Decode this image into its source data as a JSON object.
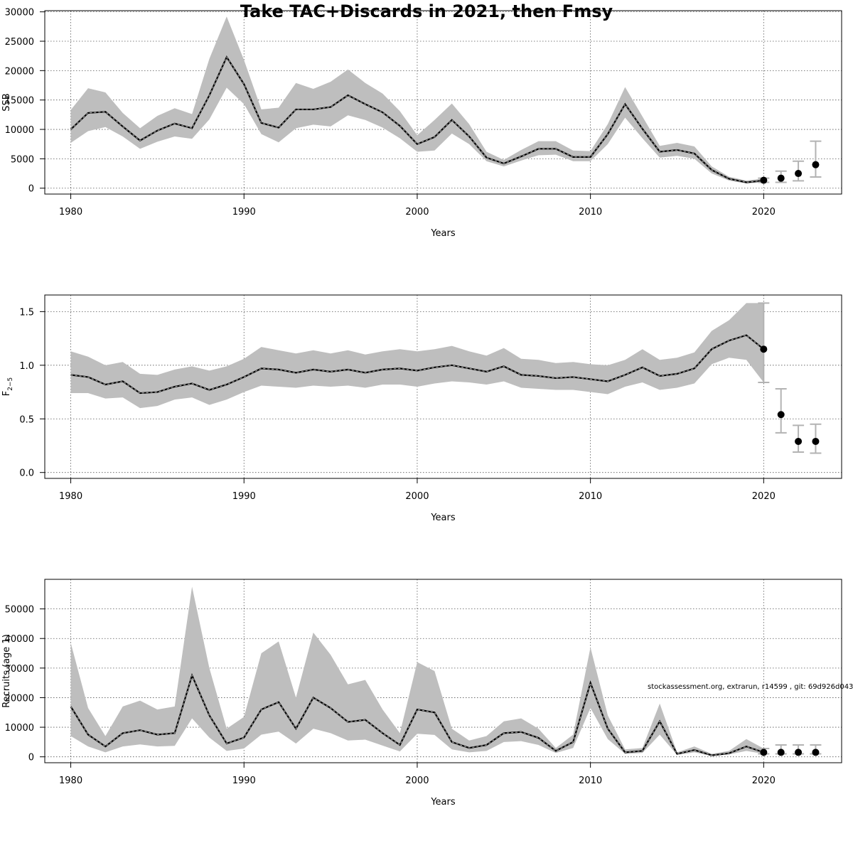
{
  "title": "Take TAC+Discards in 2021, then Fmsy",
  "footnote": "stockassessment.org, extrarun, r14599 , git: 69d926d0437c",
  "colors": {
    "band": "#bebebe",
    "line": "#000000",
    "errorbar": "#b3b3b3"
  },
  "chart_data": [
    {
      "type": "line",
      "name": "ssb-panel",
      "xlabel": "Years",
      "ylabel": "SSB",
      "xlim": [
        1978.5,
        2024.5
      ],
      "ylim": [
        -1000,
        30200
      ],
      "xticks": [
        1980,
        1990,
        2000,
        2010,
        2020
      ],
      "yticks": [
        0,
        5000,
        10000,
        15000,
        20000,
        25000,
        30000
      ],
      "grid": true,
      "years": [
        1980,
        1981,
        1982,
        1983,
        1984,
        1985,
        1986,
        1987,
        1988,
        1989,
        1990,
        1991,
        1992,
        1993,
        1994,
        1995,
        1996,
        1997,
        1998,
        1999,
        2000,
        2001,
        2002,
        2003,
        2004,
        2005,
        2006,
        2007,
        2008,
        2009,
        2010,
        2011,
        2012,
        2013,
        2014,
        2015,
        2016,
        2017,
        2018,
        2019,
        2020
      ],
      "estimate": [
        10000,
        12800,
        13000,
        10500,
        8100,
        9800,
        11000,
        10200,
        15800,
        22300,
        17700,
        11100,
        10300,
        13400,
        13400,
        13800,
        15800,
        14300,
        12900,
        10600,
        7500,
        8700,
        11600,
        8800,
        5200,
        4200,
        5400,
        6700,
        6700,
        5300,
        5300,
        9200,
        14300,
        10100,
        6200,
        6500,
        5900,
        3100,
        1600,
        1000,
        1300
      ],
      "upper": [
        13300,
        17000,
        16300,
        12800,
        10200,
        12300,
        13600,
        12600,
        22000,
        29200,
        21800,
        13400,
        13700,
        17900,
        16900,
        18100,
        20200,
        17900,
        16100,
        13100,
        9000,
        11600,
        14400,
        10900,
        6200,
        4800,
        6500,
        8000,
        8000,
        6400,
        6300,
        10900,
        17200,
        12200,
        7200,
        7700,
        7100,
        3700,
        1950,
        1300,
        1650
      ],
      "lower": [
        7700,
        9700,
        10400,
        8800,
        6700,
        7900,
        8800,
        8400,
        11700,
        17100,
        14300,
        9200,
        7800,
        10200,
        10800,
        10500,
        12400,
        11600,
        10300,
        8500,
        6200,
        6400,
        9300,
        7500,
        4600,
        3700,
        4700,
        5600,
        5700,
        4600,
        4600,
        7500,
        12000,
        8500,
        5200,
        5500,
        5000,
        2500,
        1300,
        800,
        1000
      ],
      "forecast": {
        "years": [
          2020,
          2021,
          2022,
          2023
        ],
        "median": [
          1350,
          1700,
          2500,
          4000
        ],
        "low": [
          1000,
          1000,
          1250,
          1900
        ],
        "high": [
          1700,
          2900,
          4600,
          8000
        ]
      }
    },
    {
      "type": "line",
      "name": "f-panel",
      "xlabel": "Years",
      "ylabel": "F",
      "ylabel_sub": "2−5",
      "xlim": [
        1978.5,
        2024.5
      ],
      "ylim": [
        -0.055,
        1.655
      ],
      "xticks": [
        1980,
        1990,
        2000,
        2010,
        2020
      ],
      "yticks": [
        0.0,
        0.5,
        1.0,
        1.5
      ],
      "ytick_labels": [
        "0.0",
        "0.5",
        "1.0",
        "1.5"
      ],
      "grid": true,
      "years": [
        1980,
        1981,
        1982,
        1983,
        1984,
        1985,
        1986,
        1987,
        1988,
        1989,
        1990,
        1991,
        1992,
        1993,
        1994,
        1995,
        1996,
        1997,
        1998,
        1999,
        2000,
        2001,
        2002,
        2003,
        2004,
        2005,
        2006,
        2007,
        2008,
        2009,
        2010,
        2011,
        2012,
        2013,
        2014,
        2015,
        2016,
        2017,
        2018,
        2019,
        2020
      ],
      "estimate": [
        0.91,
        0.89,
        0.82,
        0.85,
        0.74,
        0.75,
        0.8,
        0.83,
        0.77,
        0.82,
        0.89,
        0.97,
        0.96,
        0.93,
        0.96,
        0.94,
        0.96,
        0.93,
        0.96,
        0.97,
        0.95,
        0.98,
        1.0,
        0.97,
        0.94,
        0.99,
        0.91,
        0.9,
        0.88,
        0.89,
        0.87,
        0.85,
        0.91,
        0.98,
        0.9,
        0.92,
        0.97,
        1.15,
        1.23,
        1.28,
        1.15
      ],
      "upper": [
        1.13,
        1.08,
        1.0,
        1.03,
        0.92,
        0.91,
        0.96,
        0.99,
        0.95,
        0.99,
        1.06,
        1.17,
        1.14,
        1.11,
        1.14,
        1.11,
        1.14,
        1.1,
        1.13,
        1.15,
        1.13,
        1.15,
        1.18,
        1.13,
        1.09,
        1.16,
        1.06,
        1.05,
        1.02,
        1.03,
        1.01,
        1.0,
        1.05,
        1.15,
        1.05,
        1.07,
        1.12,
        1.32,
        1.42,
        1.58,
        1.58
      ],
      "lower": [
        0.74,
        0.74,
        0.69,
        0.7,
        0.6,
        0.62,
        0.68,
        0.7,
        0.63,
        0.68,
        0.75,
        0.81,
        0.8,
        0.79,
        0.81,
        0.8,
        0.81,
        0.79,
        0.82,
        0.82,
        0.8,
        0.83,
        0.85,
        0.84,
        0.82,
        0.85,
        0.79,
        0.78,
        0.77,
        0.77,
        0.75,
        0.73,
        0.8,
        0.84,
        0.77,
        0.79,
        0.83,
        1.01,
        1.07,
        1.05,
        0.84
      ],
      "forecast": {
        "years": [
          2020,
          2021,
          2022,
          2023
        ],
        "median": [
          1.15,
          0.54,
          0.29,
          0.29
        ],
        "low": [
          0.84,
          0.37,
          0.19,
          0.18
        ],
        "high": [
          1.58,
          0.78,
          0.44,
          0.45
        ]
      }
    },
    {
      "type": "line",
      "name": "recruits-panel",
      "xlabel": "Years",
      "ylabel": "Recruits (age 1)",
      "xlim": [
        1978.5,
        2024.5
      ],
      "ylim": [
        -2000,
        60000
      ],
      "xticks": [
        1980,
        1990,
        2000,
        2010,
        2020
      ],
      "yticks": [
        0,
        10000,
        20000,
        30000,
        40000,
        50000
      ],
      "ytick_labels": [
        "0",
        "10000",
        "20000",
        "30000",
        "40000",
        "50000"
      ],
      "grid": true,
      "years": [
        1980,
        1981,
        1982,
        1983,
        1984,
        1985,
        1986,
        1987,
        1988,
        1989,
        1990,
        1991,
        1992,
        1993,
        1994,
        1995,
        1996,
        1997,
        1998,
        1999,
        2000,
        2001,
        2002,
        2003,
        2004,
        2005,
        2006,
        2007,
        2008,
        2009,
        2010,
        2011,
        2012,
        2013,
        2014,
        2015,
        2016,
        2017,
        2018,
        2019,
        2020
      ],
      "estimate": [
        17000,
        7500,
        3500,
        8000,
        9000,
        7500,
        8000,
        27500,
        14000,
        4500,
        6500,
        16000,
        18500,
        9500,
        20000,
        16500,
        11800,
        12500,
        8000,
        4000,
        16000,
        15000,
        5000,
        3000,
        4000,
        8000,
        8400,
        6400,
        2000,
        5000,
        25000,
        9500,
        1500,
        2000,
        12000,
        1000,
        2300,
        500,
        1200,
        3500,
        1500
      ],
      "upper": [
        38500,
        16500,
        7000,
        17000,
        19000,
        16000,
        17000,
        57500,
        30000,
        9500,
        13500,
        35000,
        39000,
        20000,
        42000,
        34500,
        24500,
        26000,
        16000,
        8000,
        32000,
        29000,
        9500,
        5500,
        7000,
        12000,
        13000,
        9500,
        3000,
        7500,
        37000,
        14000,
        2500,
        3000,
        18000,
        1500,
        3500,
        1000,
        2000,
        6000,
        2800
      ],
      "lower": [
        7000,
        3500,
        1500,
        3500,
        4200,
        3500,
        3700,
        13000,
        6500,
        2000,
        2800,
        7500,
        8500,
        4500,
        9500,
        8000,
        5500,
        5800,
        3800,
        1800,
        7800,
        7400,
        2500,
        1500,
        2000,
        5000,
        5300,
        4000,
        1300,
        3000,
        16500,
        6000,
        1000,
        1300,
        7500,
        600,
        1500,
        300,
        800,
        2000,
        1000
      ],
      "forecast": {
        "years": [
          2020,
          2021,
          2022,
          2023
        ],
        "median": [
          1500,
          1500,
          1500,
          1500
        ],
        "low": [
          1000,
          1000,
          1000,
          1000
        ],
        "high": [
          2800,
          4000,
          4000,
          4000
        ]
      }
    }
  ]
}
